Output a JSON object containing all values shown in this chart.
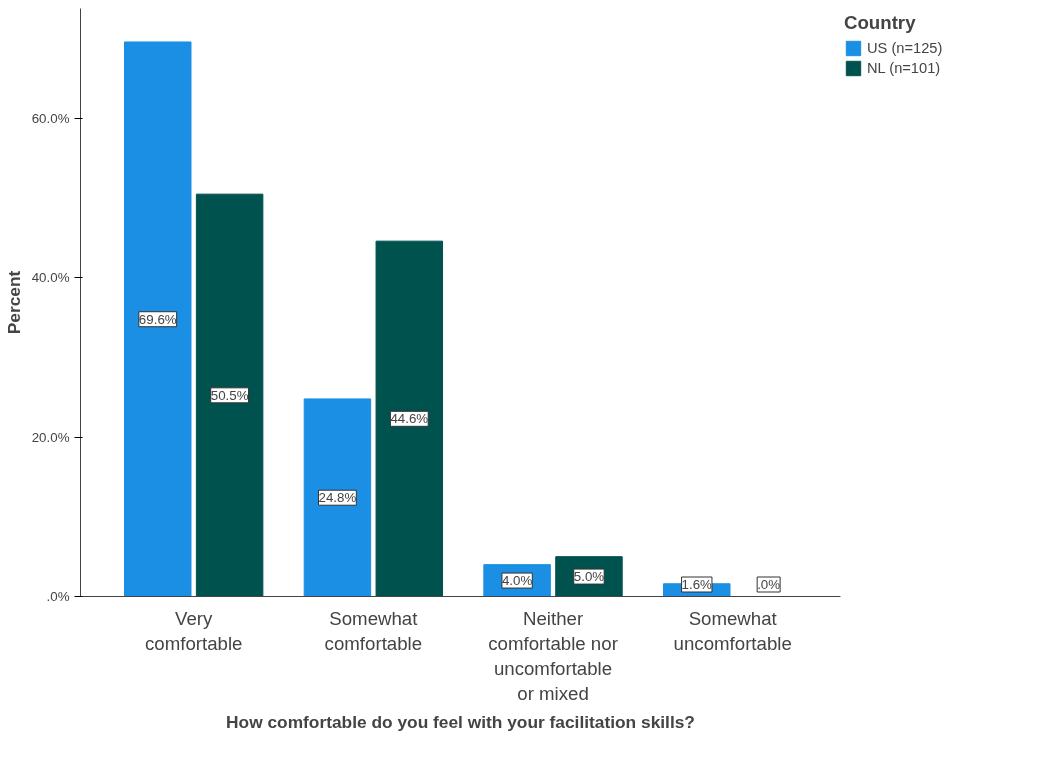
{
  "chart_data": {
    "type": "bar",
    "xlabel": "How comfortable do you feel with your facilitation skills?",
    "ylabel": "Percent",
    "legend_title": "Country",
    "categories": [
      "Very comfortable",
      "Somewhat comfortable",
      "Neither comfortable nor uncomfortable or mixed",
      "Somewhat uncomfortable"
    ],
    "series": [
      {
        "name": "US (n=125)",
        "color": "#1a8fe3",
        "values": [
          69.6,
          24.8,
          4.0,
          1.6
        ],
        "value_labels": [
          "69.6%",
          "24.8%",
          "4.0%",
          "1.6%"
        ]
      },
      {
        "name": "NL (n=101)",
        "color": "#00524f",
        "values": [
          50.5,
          44.6,
          5.0,
          0.0
        ],
        "value_labels": [
          "50.5%",
          "44.6%",
          "5.0%",
          ".0%"
        ]
      }
    ],
    "ylim": [
      0,
      73.8
    ],
    "yticks": [
      {
        "value": 0,
        "label": ".0%"
      },
      {
        "value": 20,
        "label": "20.0%"
      },
      {
        "value": 40,
        "label": "40.0%"
      },
      {
        "value": 60,
        "label": "60.0%"
      }
    ],
    "grid": false,
    "legend": "top right"
  }
}
